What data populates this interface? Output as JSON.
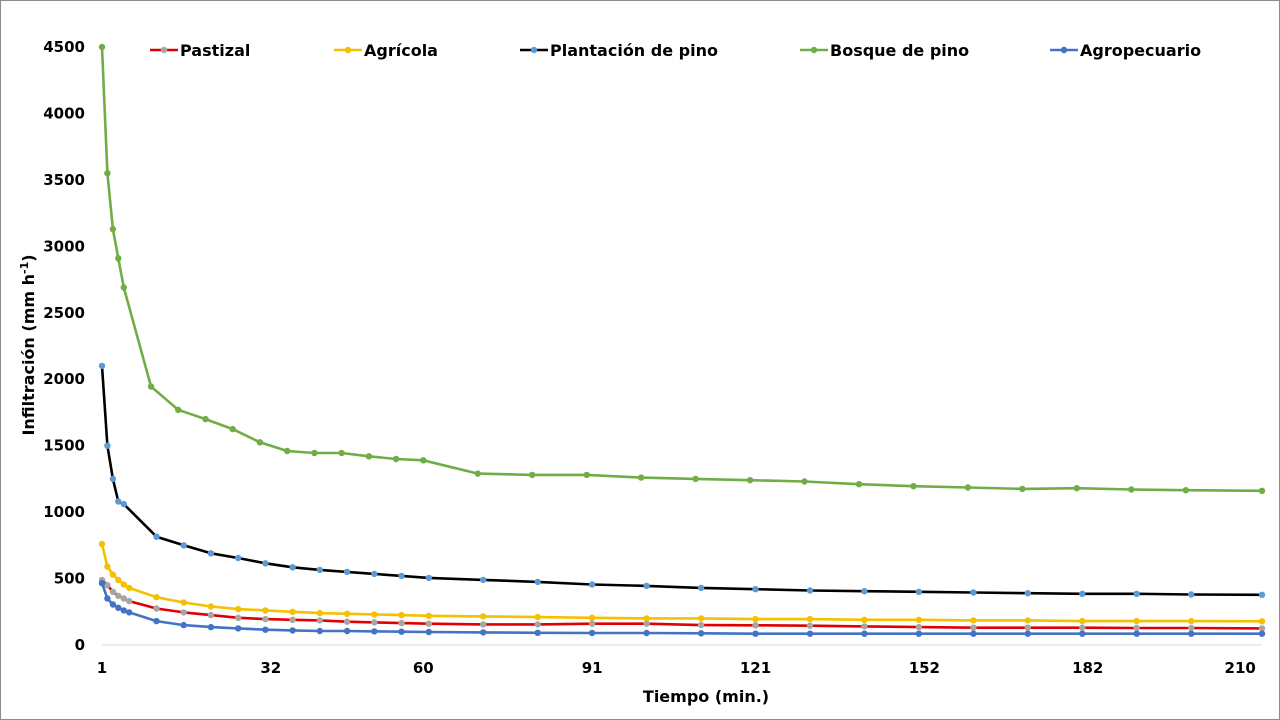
{
  "chart_data": {
    "type": "line",
    "title": "",
    "xlabel": "Tiempo  (min.)",
    "ylabel": "Infiltración  (mm h",
    "ylabel_sup": "-1",
    "ylabel_end": ")",
    "xlim": [
      1,
      214
    ],
    "ylim": [
      0,
      4500
    ],
    "y_ticks": [
      0,
      500,
      1000,
      1500,
      2000,
      2500,
      3000,
      3500,
      4000,
      4500
    ],
    "x_ticks": [
      1,
      32,
      60,
      91,
      121,
      152,
      182,
      210
    ],
    "grid": false,
    "legend_position": "top",
    "series": [
      {
        "name": "Pastizal",
        "color": "#e00000",
        "marker_color": "#a6a6a6",
        "x": [
          1,
          2,
          3,
          4,
          5,
          6,
          11,
          16,
          21,
          26,
          31,
          36,
          41,
          46,
          51,
          56,
          61,
          71,
          81,
          91,
          101,
          111,
          121,
          131,
          141,
          151,
          161,
          171,
          181,
          191,
          201,
          214
        ],
        "values": [
          490,
          450,
          400,
          370,
          350,
          330,
          275,
          245,
          225,
          205,
          195,
          190,
          185,
          175,
          170,
          165,
          160,
          155,
          155,
          160,
          160,
          150,
          148,
          145,
          140,
          135,
          130,
          130,
          130,
          128,
          128,
          125
        ]
      },
      {
        "name": "Agrícola",
        "color": "#f5c000",
        "marker_color": "#f5c000",
        "x": [
          1,
          2,
          3,
          4,
          5,
          6,
          11,
          16,
          21,
          26,
          31,
          36,
          41,
          46,
          51,
          56,
          61,
          71,
          81,
          91,
          101,
          111,
          121,
          131,
          141,
          151,
          161,
          171,
          181,
          191,
          201,
          214
        ],
        "values": [
          760,
          590,
          530,
          490,
          455,
          430,
          360,
          320,
          290,
          270,
          260,
          250,
          240,
          235,
          230,
          225,
          220,
          215,
          210,
          205,
          200,
          200,
          195,
          195,
          190,
          190,
          185,
          185,
          180,
          180,
          180,
          178
        ]
      },
      {
        "name": "Plantación de pino",
        "color": "#000000",
        "marker_color": "#5b9bd5",
        "x": [
          1,
          2,
          3,
          4,
          5,
          11,
          16,
          21,
          26,
          31,
          36,
          41,
          46,
          51,
          56,
          61,
          71,
          81,
          91,
          101,
          111,
          121,
          131,
          141,
          151,
          161,
          171,
          181,
          191,
          201,
          214
        ],
        "values": [
          2100,
          1500,
          1250,
          1080,
          1060,
          815,
          750,
          690,
          655,
          615,
          585,
          565,
          550,
          535,
          520,
          505,
          490,
          475,
          455,
          445,
          430,
          420,
          410,
          405,
          400,
          395,
          390,
          385,
          385,
          380,
          378
        ]
      },
      {
        "name": "Bosque de pino",
        "color": "#70ad47",
        "marker_color": "#70ad47",
        "x": [
          1,
          2,
          3,
          4,
          5,
          10,
          15,
          20,
          25,
          30,
          35,
          40,
          45,
          50,
          55,
          60,
          70,
          80,
          90,
          100,
          110,
          120,
          130,
          140,
          150,
          160,
          170,
          180,
          190,
          200,
          214
        ],
        "values": [
          4500,
          3550,
          3130,
          2910,
          2690,
          1945,
          1770,
          1700,
          1625,
          1525,
          1460,
          1445,
          1445,
          1420,
          1400,
          1390,
          1290,
          1280,
          1280,
          1260,
          1250,
          1240,
          1230,
          1210,
          1195,
          1185,
          1175,
          1180,
          1170,
          1165,
          1160
        ]
      },
      {
        "name": "Agropecuario",
        "color": "#4472c4",
        "marker_color": "#4472c4",
        "x": [
          1,
          2,
          3,
          4,
          5,
          6,
          11,
          16,
          21,
          26,
          31,
          36,
          41,
          46,
          51,
          56,
          61,
          71,
          81,
          91,
          101,
          111,
          121,
          131,
          141,
          151,
          161,
          171,
          181,
          191,
          201,
          214
        ],
        "values": [
          465,
          350,
          305,
          280,
          260,
          245,
          180,
          150,
          135,
          125,
          115,
          110,
          105,
          105,
          102,
          100,
          98,
          95,
          92,
          90,
          90,
          88,
          85,
          85,
          85,
          85,
          85,
          85,
          85,
          85,
          85,
          85
        ]
      }
    ]
  }
}
